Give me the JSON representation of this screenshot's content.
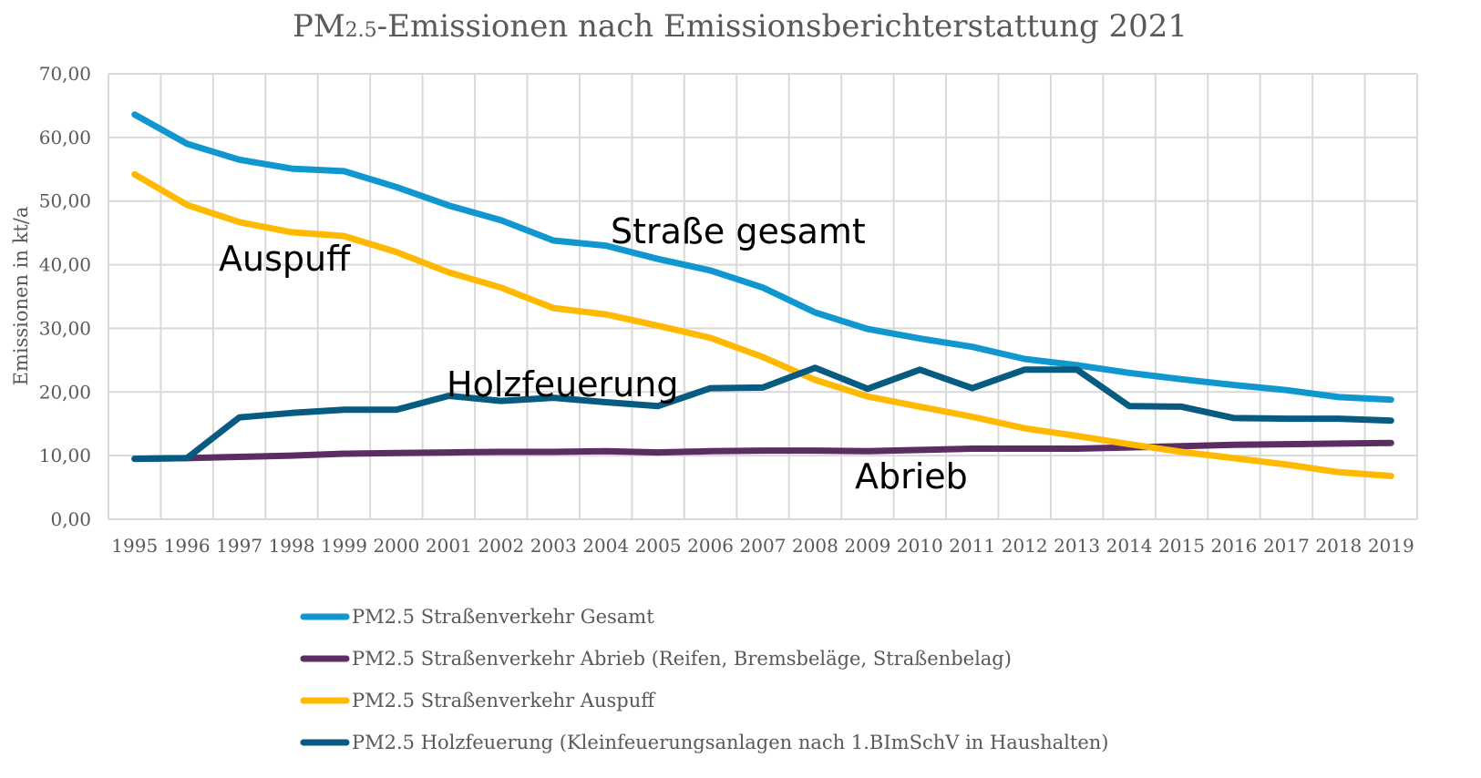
{
  "chart_data": {
    "type": "line",
    "title_main": "PM",
    "title_sub": "2.5",
    "title_rest": "-Emissionen nach Emissionsberichterstattung 2021",
    "title": "PM2.5-Emissionen nach Emissionsberichterstattung 2021",
    "xlabel": "",
    "ylabel": "Emissionen in kt/a",
    "ylim": [
      0,
      70
    ],
    "yticks": [
      0,
      10,
      20,
      30,
      40,
      50,
      60,
      70
    ],
    "ytick_labels": [
      "0,00",
      "10,00",
      "20,00",
      "30,00",
      "40,00",
      "50,00",
      "60,00",
      "70,00"
    ],
    "grid": true,
    "legend_position": "bottom",
    "categories": [
      "1995",
      "1996",
      "1997",
      "1998",
      "1999",
      "2000",
      "2001",
      "2002",
      "2003",
      "2004",
      "2005",
      "2006",
      "2007",
      "2008",
      "2009",
      "2010",
      "2011",
      "2012",
      "2013",
      "2014",
      "2015",
      "2016",
      "2017",
      "2018",
      "2019"
    ],
    "series": [
      {
        "name": "PM2.5 Straßenverkehr Gesamt",
        "key": "gesamt",
        "color": "#1197d0",
        "values": [
          63.6,
          59.0,
          56.5,
          55.1,
          54.7,
          52.2,
          49.3,
          47.0,
          43.8,
          43.0,
          40.9,
          39.1,
          36.4,
          32.5,
          29.9,
          28.4,
          27.1,
          25.2,
          24.2,
          23.0,
          22.0,
          21.1,
          20.3,
          19.2,
          18.8
        ]
      },
      {
        "name": "PM2.5 Straßenverkehr Abrieb (Reifen, Bremsbeläge, Straßenbelag)",
        "key": "abrieb",
        "color": "#5c2d63",
        "values": [
          9.5,
          9.6,
          9.8,
          10.0,
          10.3,
          10.4,
          10.5,
          10.6,
          10.6,
          10.7,
          10.5,
          10.7,
          10.8,
          10.8,
          10.7,
          10.9,
          11.1,
          11.1,
          11.1,
          11.3,
          11.5,
          11.7,
          11.8,
          11.9,
          12.0
        ]
      },
      {
        "name": "PM2.5 Straßenverkehr Auspuff",
        "key": "auspuff",
        "color": "#ffb900",
        "values": [
          54.2,
          49.4,
          46.7,
          45.1,
          44.5,
          42.0,
          38.8,
          36.4,
          33.2,
          32.2,
          30.4,
          28.5,
          25.5,
          21.9,
          19.3,
          17.7,
          16.1,
          14.3,
          13.1,
          11.8,
          10.6,
          9.6,
          8.6,
          7.4,
          6.8
        ]
      },
      {
        "name": "PM2.5 Holzfeuerung (Kleinfeuerungsanlagen nach 1.BImSchV in Haushalten)",
        "key": "holz",
        "color": "#075b80",
        "values": [
          9.5,
          9.6,
          16.0,
          16.7,
          17.2,
          17.2,
          19.4,
          18.6,
          19.1,
          18.4,
          17.8,
          20.6,
          20.7,
          23.8,
          20.5,
          23.5,
          20.6,
          23.5,
          23.5,
          17.8,
          17.7,
          15.9,
          15.8,
          15.8,
          15.5
        ]
      }
    ],
    "annotations": [
      {
        "text": "Auspuff",
        "series": "auspuff"
      },
      {
        "text": "Straße gesamt",
        "series": "gesamt"
      },
      {
        "text": "Holzfeuerung",
        "series": "holz"
      },
      {
        "text": "Abrieb",
        "series": "abrieb"
      }
    ]
  }
}
